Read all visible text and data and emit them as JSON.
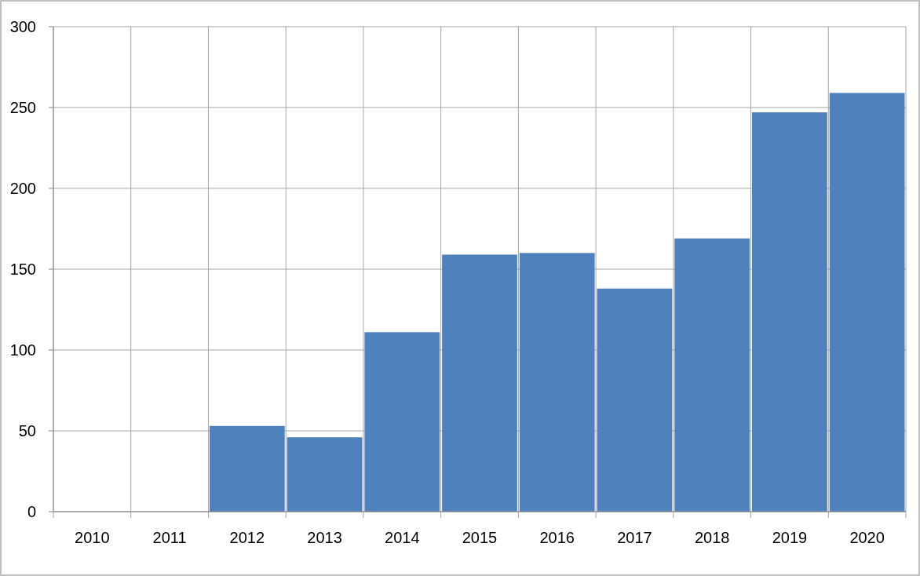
{
  "chart_data": {
    "type": "bar",
    "categories": [
      "2010",
      "2011",
      "2012",
      "2013",
      "2014",
      "2015",
      "2016",
      "2017",
      "2018",
      "2019",
      "2020"
    ],
    "values": [
      null,
      null,
      53,
      46,
      111,
      159,
      160,
      138,
      169,
      247,
      259
    ],
    "color": "#4f81bd",
    "ylim": [
      0,
      300
    ],
    "yticks": [
      0,
      50,
      100,
      150,
      200,
      250,
      300
    ],
    "grid": true
  }
}
